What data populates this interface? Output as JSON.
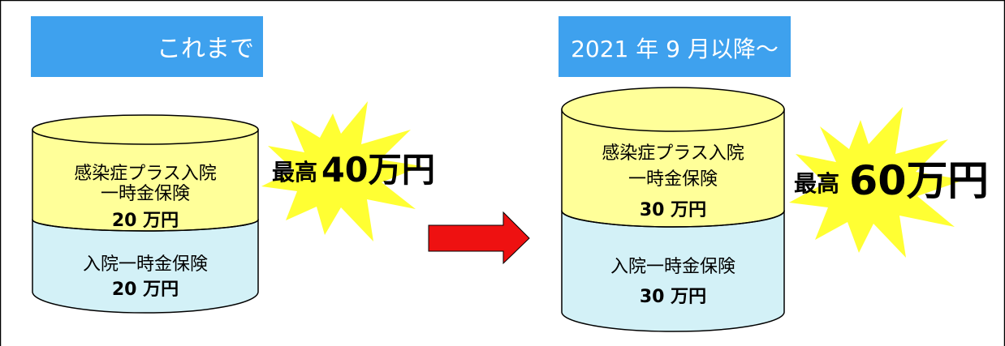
{
  "colors": {
    "header_bg": "#3ea1ee",
    "header_text": "#ffffff",
    "upper_layer": "#ffff99",
    "lower_layer": "#d3f1f7",
    "starburst": "#ffff33",
    "arrow": "#ee1111",
    "outline": "#000000"
  },
  "left": {
    "header": "これまで",
    "upper": {
      "line1": "感染症プラス入院",
      "line2": "一時金保険",
      "amount": "20 万円"
    },
    "lower": {
      "line1": "入院一時金保険",
      "amount": "20 万円"
    },
    "burst": {
      "prefix": "最高",
      "amount": "40万円"
    }
  },
  "right": {
    "header": "2021 年 9 月以降～",
    "upper": {
      "line1": "感染症プラス入院",
      "line2": "一時金保険",
      "amount": "30 万円"
    },
    "lower": {
      "line1": "入院一時金保険",
      "amount": "30 万円"
    },
    "burst": {
      "prefix": "最高",
      "amount": "60万円"
    }
  },
  "arrow_icon": "right-arrow-icon"
}
